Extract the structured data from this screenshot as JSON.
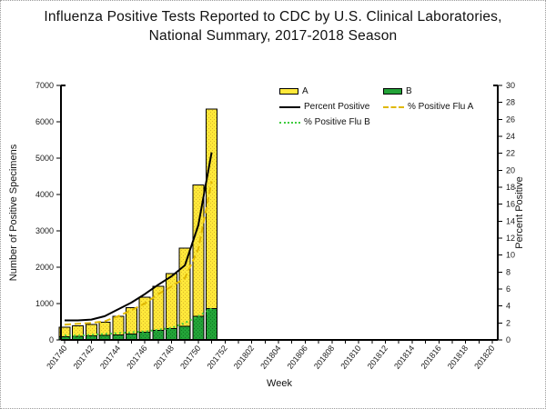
{
  "chart_data": {
    "type": "bar",
    "title_line1": "Influenza Positive Tests Reported to CDC by U.S. Clinical Laboratories,",
    "title_line2": "National Summary, 2017-2018 Season",
    "xlabel": "Week",
    "ylabel_left": "Number of Positive Specimens",
    "ylabel_right": "Percent Positive",
    "ylim_left": [
      0,
      7000
    ],
    "ytick_step_left": 1000,
    "ylim_right": [
      0,
      30
    ],
    "ytick_step_right": 2,
    "x_ticks_all": [
      "201740",
      "201741",
      "201742",
      "201743",
      "201744",
      "201745",
      "201746",
      "201747",
      "201748",
      "201749",
      "201750",
      "201751",
      "201752",
      "201801",
      "201802",
      "201803",
      "201804",
      "201805",
      "201806",
      "201807",
      "201808",
      "201809",
      "201810",
      "201811",
      "201812",
      "201813",
      "201814",
      "201815",
      "201816",
      "201817",
      "201818",
      "201819",
      "201820"
    ],
    "x_tick_label_every": 2,
    "bar_weeks": [
      "201740",
      "201741",
      "201742",
      "201743",
      "201744",
      "201745",
      "201746",
      "201747",
      "201748",
      "201749",
      "201750",
      "201751"
    ],
    "series": [
      {
        "name": "A",
        "type": "bar",
        "axis": "left",
        "color": "#FFE83A",
        "dot_color": "#D8B82C",
        "values": [
          260,
          290,
          310,
          365,
          510,
          725,
          960,
          1215,
          1515,
          2155,
          3610,
          5490
        ]
      },
      {
        "name": "B",
        "type": "bar",
        "axis": "left",
        "color": "#23A338",
        "dot_color": "#0E7A22",
        "values": [
          90,
          100,
          110,
          125,
          140,
          160,
          215,
          260,
          310,
          375,
          650,
          865
        ]
      },
      {
        "name": "Percent Positive",
        "type": "line",
        "axis": "right",
        "color": "#000000",
        "style": "solid",
        "values": [
          2.3,
          2.3,
          2.4,
          2.8,
          3.6,
          4.4,
          5.4,
          6.5,
          7.5,
          8.8,
          13.5,
          22.1
        ]
      },
      {
        "name": "% Positive Flu A",
        "type": "line",
        "axis": "right",
        "color": "#E0B800",
        "style": "dashed",
        "values": [
          1.8,
          1.9,
          2.0,
          2.2,
          2.8,
          3.5,
          4.3,
          5.4,
          6.3,
          7.3,
          10.7,
          18.7
        ]
      },
      {
        "name": "% Positive Flu B",
        "type": "line",
        "axis": "right",
        "color": "#3FCC3F",
        "style": "dotted",
        "values": [
          0.5,
          0.5,
          0.6,
          0.7,
          0.8,
          0.9,
          1.0,
          1.2,
          1.4,
          2.0,
          2.8,
          3.7
        ]
      }
    ],
    "legend": {
      "items": [
        {
          "label": "A",
          "swatch": "box",
          "color": "#FFE83A"
        },
        {
          "label": "B",
          "swatch": "box",
          "color": "#23A338"
        },
        {
          "label": "Percent Positive",
          "swatch": "line-solid",
          "color": "#000000"
        },
        {
          "label": "% Positive Flu A",
          "swatch": "line-dashed",
          "color": "#E0B800"
        },
        {
          "label": "% Positive Flu B",
          "swatch": "line-dotted",
          "color": "#3FCC3F"
        }
      ]
    },
    "legend_position": "top-right",
    "grid": "off"
  }
}
